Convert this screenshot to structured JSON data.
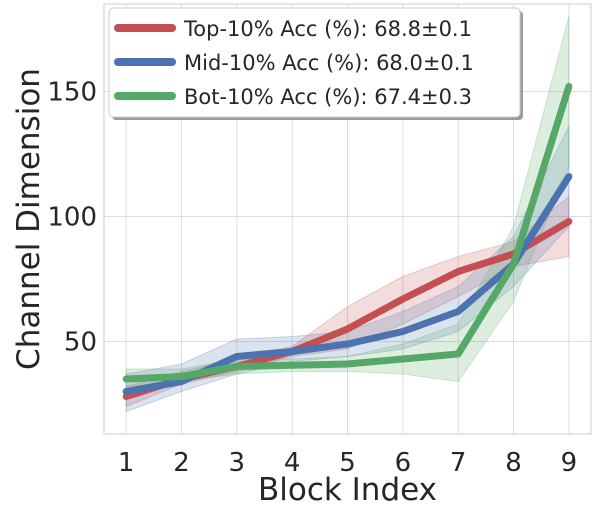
{
  "chart_data": {
    "type": "line",
    "xlabel": "Block Index",
    "ylabel": "Channel Dimension",
    "x": [
      1,
      2,
      3,
      4,
      5,
      6,
      7,
      8,
      9
    ],
    "xlim": [
      0.6,
      9.4
    ],
    "ylim": [
      13,
      185
    ],
    "yticks": [
      50,
      100,
      150
    ],
    "grid": true,
    "legend_position": "top-left",
    "series": [
      {
        "name": "Top-10% Acc (%): 68.8±0.1",
        "color": "#c44e52",
        "values": [
          28,
          35,
          40,
          46,
          55,
          67,
          78,
          85,
          98
        ],
        "band_low": [
          24,
          33,
          38,
          44,
          47,
          57,
          68,
          80,
          84
        ],
        "band_high": [
          32,
          38,
          43,
          48,
          64,
          76,
          84,
          90,
          108
        ]
      },
      {
        "name": "Mid-10% Acc (%): 68.0±0.1",
        "color": "#4c72b0",
        "values": [
          30,
          34,
          44,
          46,
          49,
          54,
          62,
          81,
          116
        ],
        "band_low": [
          22,
          30,
          37,
          42,
          44,
          47,
          54,
          72,
          96
        ],
        "band_high": [
          37,
          41,
          51,
          52,
          54,
          62,
          72,
          92,
          136
        ]
      },
      {
        "name": "Bot-10% Acc (%): 67.4±0.3",
        "color": "#55a868",
        "values": [
          35,
          36,
          40,
          40.5,
          41,
          43,
          45,
          81,
          152
        ],
        "band_low": [
          32,
          34,
          37,
          38,
          38,
          37,
          34,
          66,
          120
        ],
        "band_high": [
          39,
          39,
          43,
          43,
          44,
          49,
          57,
          96,
          180
        ]
      }
    ]
  }
}
